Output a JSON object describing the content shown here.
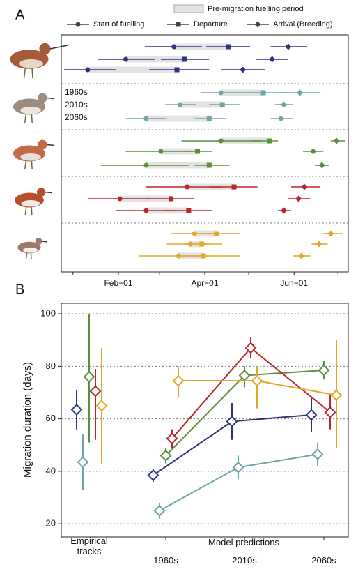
{
  "chart_data": [
    {
      "type": "timeline",
      "label": "A",
      "legend": {
        "period": "Pre-migration fuelling period",
        "start": "Start of fuelling",
        "departure": "Departure",
        "arrival": "Arrival (Breeding)"
      },
      "decades": [
        "1960s",
        "2010s",
        "2060s"
      ],
      "xlim": [
        -7,
        189
      ],
      "xticks": [
        {
          "value": 32,
          "label": "Feb−01"
        },
        {
          "value": 91,
          "label": "Apr−01"
        },
        {
          "value": 152,
          "label": "Jun−01"
        }
      ],
      "xminorticks": [
        1,
        60,
        121,
        182
      ],
      "period_color": "#e3e3e3",
      "species": [
        {
          "color": "#2e3480",
          "rows": [
            {
              "start": [
                70,
                50,
                89
              ],
              "departure": [
                107,
                92,
                122
              ],
              "arrival": [
                148,
                136,
                161
              ]
            },
            {
              "start": [
                37,
                18,
                57
              ],
              "departure": [
                77,
                61,
                94
              ],
              "arrival": [
                137,
                126,
                148
              ]
            },
            {
              "start": [
                11,
                -5,
                30
              ],
              "departure": [
                72,
                53,
                94
              ],
              "arrival": [
                117,
                102,
                132
              ]
            }
          ]
        },
        {
          "color": "#6ea5a6",
          "rows": [
            {
              "start": [
                102,
                88,
                118
              ],
              "departure": [
                131,
                118,
                146
              ],
              "arrival": [
                156,
                145,
                170
              ]
            },
            {
              "start": [
                74,
                64,
                85
              ],
              "departure": [
                103,
                94,
                115
              ],
              "arrival": [
                145,
                139,
                151
              ]
            },
            {
              "start": [
                51,
                37,
                65
              ],
              "departure": [
                94,
                84,
                106
              ],
              "arrival": [
                143,
                136,
                151
              ]
            }
          ]
        },
        {
          "color": "#5a8f3c",
          "rows": [
            {
              "start": [
                102,
                75,
                130
              ],
              "departure": [
                135,
                123,
                141
              ],
              "arrival": [
                181,
                177,
                187
              ]
            },
            {
              "start": [
                61,
                37,
                82
              ],
              "departure": [
                86,
                77,
                96
              ],
              "arrival": [
                165,
                158,
                172
              ]
            },
            {
              "start": [
                51,
                20,
                80
              ],
              "departure": [
                94,
                84,
                108
              ],
              "arrival": [
                171,
                166,
                176
              ]
            }
          ]
        },
        {
          "color": "#b7282e",
          "rows": [
            {
              "start": [
                79,
                51,
                103
              ],
              "departure": [
                111,
                94,
                127
              ],
              "arrival": [
                159,
                150,
                170
              ]
            },
            {
              "start": [
                33,
                11,
                53
              ],
              "departure": [
                68,
                51,
                84
              ],
              "arrival": [
                155,
                148,
                163
              ]
            },
            {
              "start": [
                51,
                30,
                72
              ],
              "departure": [
                80,
                63,
                96
              ],
              "arrival": [
                145,
                141,
                150
              ]
            }
          ]
        },
        {
          "color": "#e2a82a",
          "rows": [
            {
              "start": [
                84,
                68,
                99
              ],
              "departure": [
                99,
                84,
                115
              ],
              "arrival": [
                177,
                171,
                185
              ]
            },
            {
              "start": [
                81,
                65,
                94
              ],
              "departure": [
                89,
                77,
                103
              ],
              "arrival": [
                169,
                164,
                175
              ]
            },
            {
              "start": [
                73,
                46,
                94
              ],
              "departure": [
                90,
                72,
                115
              ],
              "arrival": [
                157,
                151,
                163
              ]
            }
          ]
        }
      ]
    },
    {
      "type": "line",
      "label": "B",
      "ylabel": "Migration duration (days)",
      "categories": [
        "Empirical tracks",
        "1960s",
        "2010s",
        "2060s"
      ],
      "group_label": "Model predictions",
      "ylim": [
        15,
        104
      ],
      "yticks": [
        20,
        40,
        60,
        80,
        100
      ],
      "grid": true,
      "series": [
        {
          "color": "#2e3480",
          "values": [
            63.5,
            38.5,
            59,
            61.5
          ],
          "lower": [
            56,
            36,
            52,
            55
          ],
          "upper": [
            71,
            41,
            66,
            68
          ]
        },
        {
          "color": "#6ea5a6",
          "values": [
            43.5,
            25,
            41.5,
            46.5
          ],
          "lower": [
            33,
            22,
            37,
            42
          ],
          "upper": [
            54,
            28,
            46,
            51
          ]
        },
        {
          "color": "#5a8f3c",
          "values": [
            76,
            46,
            76.5,
            78.5
          ],
          "lower": [
            51,
            43,
            72,
            75
          ],
          "upper": [
            100,
            49,
            80,
            82
          ]
        },
        {
          "color": "#b7282e",
          "values": [
            70.5,
            52.5,
            87,
            62.5
          ],
          "lower": [
            52,
            49,
            83,
            56
          ],
          "upper": [
            79,
            56,
            91,
            69
          ]
        },
        {
          "color": "#e2a82a",
          "values": [
            65,
            74.5,
            74.5,
            69
          ],
          "lower": [
            43,
            68,
            64,
            49
          ],
          "upper": [
            87,
            80,
            80,
            90
          ]
        }
      ]
    }
  ]
}
